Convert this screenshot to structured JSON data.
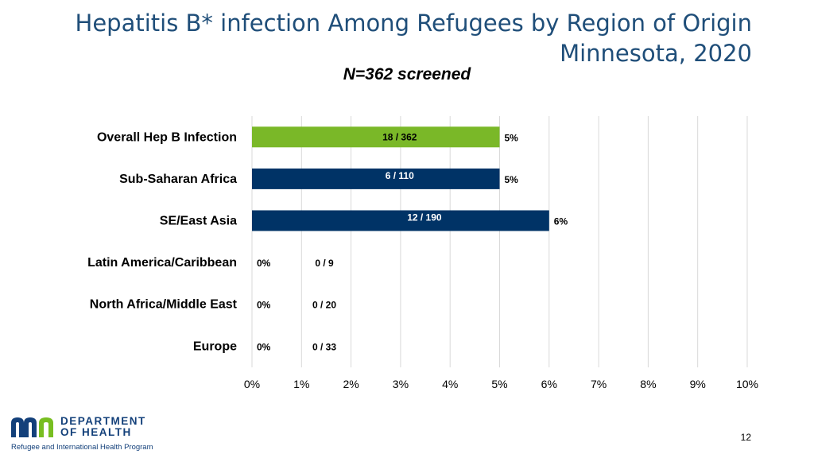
{
  "slide": {
    "title_line1": "Hepatitis B* infection Among Refugees by Region of Origin",
    "title_line2": "Minnesota, 2020",
    "subtitle": "N=362 screened",
    "page_number": "12",
    "logo": {
      "line1": "DEPARTMENT",
      "line2": "OF HEALTH",
      "program": "Refugee and International Health Program",
      "brand_color": "#13407a",
      "accent_color": "#78be21"
    }
  },
  "chart_data": {
    "type": "bar",
    "orientation": "horizontal",
    "categories": [
      "Overall Hep B Infection",
      "Sub-Saharan Africa",
      "SE/East Asia",
      "Latin America/Caribbean",
      "North Africa/Middle East",
      "Europe"
    ],
    "values": [
      5,
      5,
      6,
      0,
      0,
      0
    ],
    "value_labels": [
      "5%",
      "5%",
      "6%",
      "0%",
      "0%",
      "0%"
    ],
    "count_labels": [
      "18 / 362",
      "6 / 110",
      "12 / 190",
      "0 / 9",
      "0 / 20",
      "0 / 33"
    ],
    "bar_colors": [
      "#7ab828",
      "#003366",
      "#003366",
      "#003366",
      "#003366",
      "#003366"
    ],
    "xlim": [
      0,
      10
    ],
    "xticks": [
      "0%",
      "1%",
      "2%",
      "3%",
      "4%",
      "5%",
      "6%",
      "7%",
      "8%",
      "9%",
      "10%"
    ],
    "grid": "vertical",
    "legend": "none",
    "gridline_color": "#d9d9d9"
  }
}
